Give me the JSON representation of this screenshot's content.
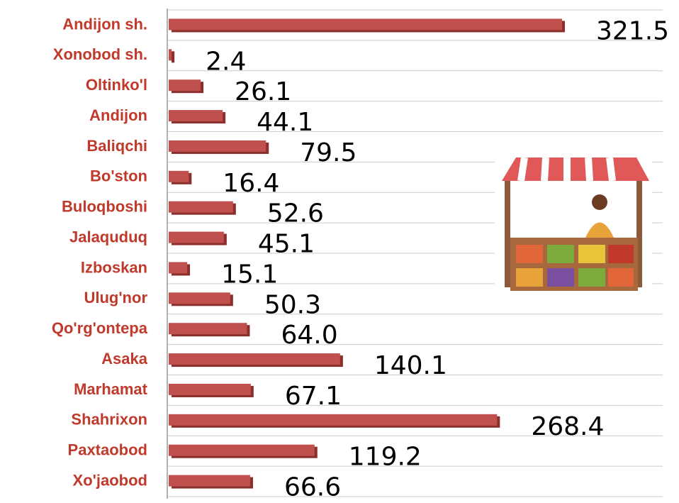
{
  "chart_data": {
    "type": "bar",
    "orientation": "horizontal",
    "categories": [
      "Andijon sh.",
      "Xonobod sh.",
      "Oltinko'l",
      "Andijon",
      "Baliqchi",
      "Bo'ston",
      "Buloqboshi",
      "Jalaquduq",
      "Izboskan",
      "Ulug'nor",
      "Qo'rg'ontepa",
      "Asaka",
      "Marhamat",
      "Shahrixon",
      "Paxtaobod",
      "Xo'jaobod"
    ],
    "values": [
      321.5,
      2.4,
      26.1,
      44.1,
      79.5,
      16.4,
      52.6,
      45.1,
      15.1,
      50.3,
      64.0,
      140.1,
      67.1,
      268.4,
      119.2,
      66.6
    ],
    "value_labels": [
      "321.5",
      "2.4",
      "26.1",
      "44.1",
      "79.5",
      "16.4",
      "52.6",
      "45.1",
      "15.1",
      "50.3",
      "64.0",
      "140.1",
      "67.1",
      "268.4",
      "119.2",
      "66.6"
    ],
    "color": "#c0504d"
  }
}
